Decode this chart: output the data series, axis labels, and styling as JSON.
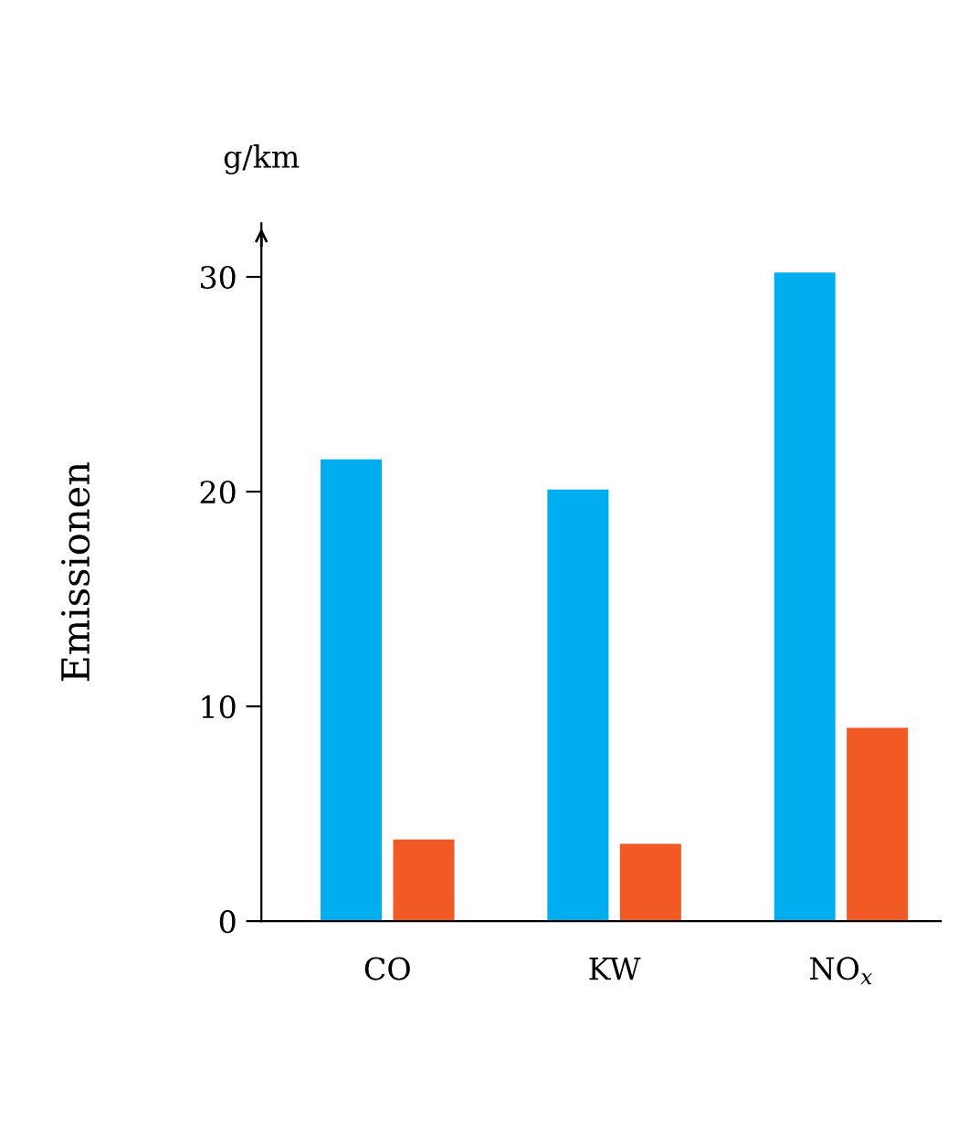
{
  "chart_data": {
    "type": "bar",
    "categories": [
      "CO",
      "KW",
      "NO$_{x}$"
    ],
    "series": [
      {
        "color": "#00aeef",
        "values": [
          21.5,
          20.1,
          30.2
        ]
      },
      {
        "color": "#f15a24",
        "values": [
          3.8,
          3.6,
          9.0
        ]
      }
    ],
    "ylabel": "Emissionen",
    "annotations": [
      "g/km"
    ],
    "ylim": [
      0,
      32.5
    ],
    "yticks": [
      0,
      10,
      20,
      30
    ],
    "grid": false,
    "legend": false
  }
}
